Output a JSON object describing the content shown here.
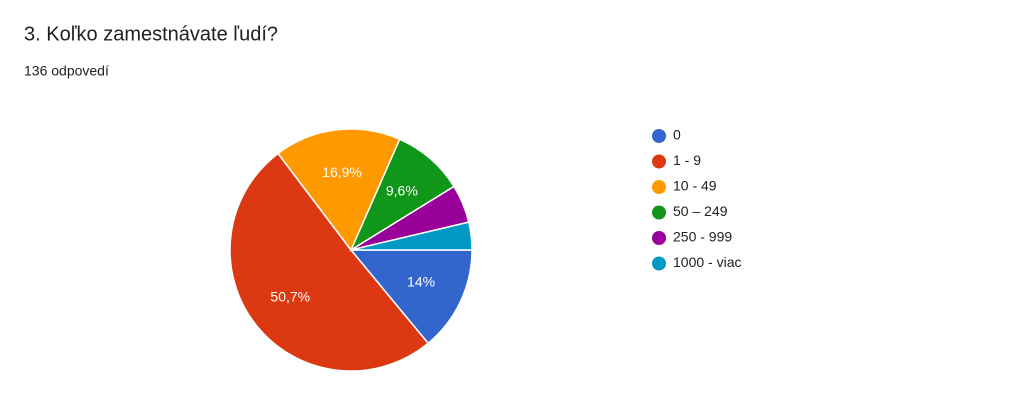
{
  "chart_data": {
    "type": "pie",
    "title": "3. Koľko zamestnávate ľudí?",
    "subtitle": "136 odpovedí",
    "categories": [
      "0",
      "1 - 9",
      "10 - 49",
      "50 – 249",
      "250 - 999",
      "1000 - viac"
    ],
    "values": [
      14,
      50.7,
      16.9,
      9.6,
      5.1,
      3.7
    ],
    "value_labels": [
      "14%",
      "50,7%",
      "16,9%",
      "9,6%",
      null,
      null
    ],
    "colors": [
      "#3366cc",
      "#dc3912",
      "#ff9900",
      "#109618",
      "#990099",
      "#0099c6"
    ],
    "legend": "right"
  }
}
